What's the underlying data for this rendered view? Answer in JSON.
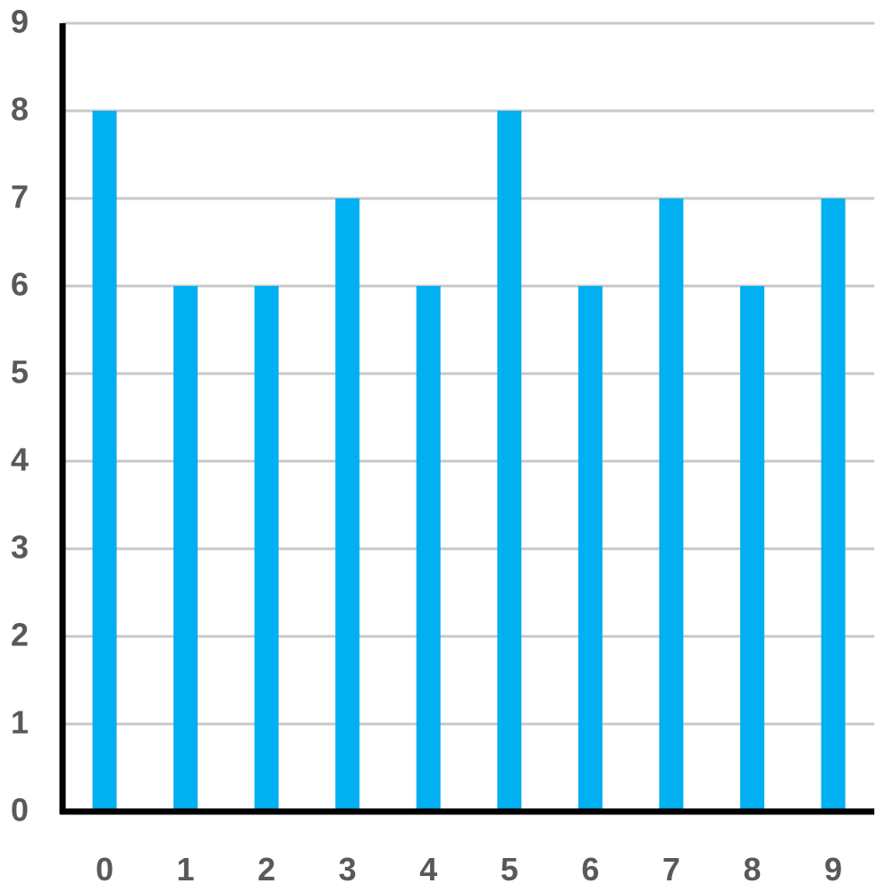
{
  "chart_data": {
    "type": "bar",
    "categories": [
      "0",
      "1",
      "2",
      "3",
      "4",
      "5",
      "6",
      "7",
      "8",
      "9"
    ],
    "values": [
      8,
      6,
      6,
      7,
      6,
      8,
      6,
      7,
      6,
      7
    ],
    "title": "",
    "xlabel": "",
    "ylabel": "",
    "ylim": [
      0,
      9
    ],
    "yticks": [
      "0",
      "1",
      "2",
      "3",
      "4",
      "5",
      "6",
      "7",
      "8",
      "9"
    ],
    "grid": true,
    "legend": "none"
  },
  "colors": {
    "bar": "#00B0F0",
    "grid": "#C8C8C8",
    "axis": "#000000",
    "tick_text": "#595959"
  }
}
